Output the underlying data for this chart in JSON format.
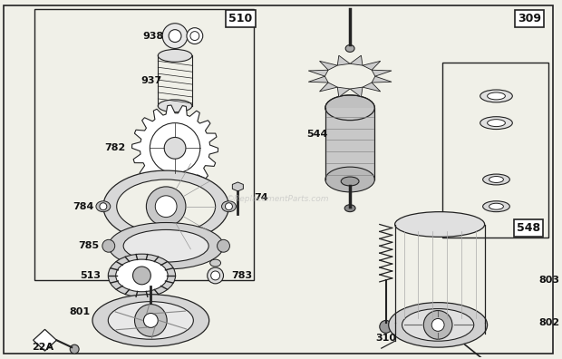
{
  "bg_color": "#f0f0e8",
  "line_color": "#222222",
  "watermark": "©ReplacementParts.com",
  "figsize": [
    6.2,
    3.96
  ],
  "dpi": 100
}
